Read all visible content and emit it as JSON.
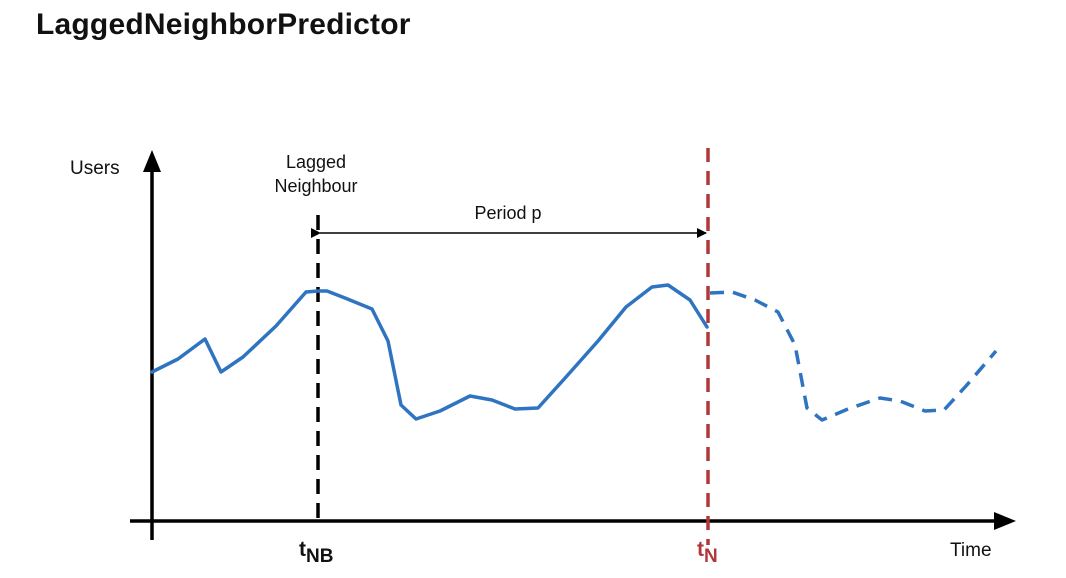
{
  "title": "LaggedNeighborPredictor",
  "diagram": {
    "y_axis_label": "Users",
    "x_axis_label": "Time",
    "lagged_label_line1": "Lagged",
    "lagged_label_line2": "Neighbour",
    "period_label": "Period p",
    "t_nb_label": {
      "base": "t",
      "sub": "NB"
    },
    "t_n_label": {
      "base": "t",
      "sub": "N"
    },
    "colors": {
      "series": "#2f74c0",
      "current_marker": "#b0383a",
      "axis": "#000000"
    }
  }
}
